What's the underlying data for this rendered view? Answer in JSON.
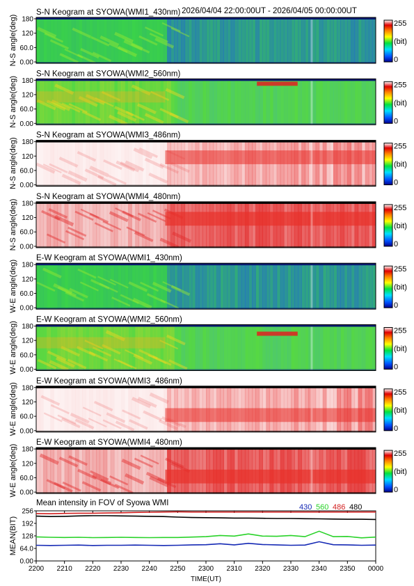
{
  "time_range": "2026/04/04 22:00:00UT - 2026/04/05 00:00:00UT",
  "colors": {
    "blue": "#1428b4",
    "green": "#28d228",
    "red": "#d21e1e",
    "black": "#000000"
  },
  "colorbar": {
    "max_label": "255",
    "unit_label": "(bit)",
    "min_label": "0"
  },
  "chart_data": [
    {
      "type": "heatmap",
      "title": "S-N Keogram at SYOWA(WMI1_430nm)",
      "ylabel": "N-S angle(deg)",
      "yticks": [
        "180",
        "120",
        "60.0",
        "0.00"
      ],
      "ylim": [
        0,
        180
      ],
      "style": "green"
    },
    {
      "type": "heatmap",
      "title": "S-N Keogram at SYOWA(WMI2_560nm)",
      "ylabel": "N-S angle(deg)",
      "yticks": [
        "180",
        "120",
        "60.0",
        "0.00"
      ],
      "ylim": [
        0,
        180
      ],
      "style": "yellow"
    },
    {
      "type": "heatmap",
      "title": "S-N Keogram at SYOWA(WMI3_486nm)",
      "ylabel": "N-S angle(deg)",
      "yticks": [
        "180",
        "120",
        "60.0",
        "0.00"
      ],
      "ylim": [
        0,
        180
      ],
      "style": "white"
    },
    {
      "type": "heatmap",
      "title": "S-N Keogram at SYOWA(WMI4_480nm)",
      "ylabel": "N-S angle(deg)",
      "yticks": [
        "180",
        "120",
        "60.0",
        "0.00"
      ],
      "ylim": [
        0,
        180
      ],
      "style": "whitered"
    },
    {
      "type": "heatmap",
      "title": "E-W Keogram at SYOWA(WMI1_430nm)",
      "ylabel": "W-E angle(deg)",
      "yticks": [
        "180",
        "120",
        "60.0",
        "0.00"
      ],
      "ylim": [
        0,
        180
      ],
      "style": "green"
    },
    {
      "type": "heatmap",
      "title": "E-W Keogram at SYOWA(WMI2_560nm)",
      "ylabel": "W-E angle(deg)",
      "yticks": [
        "180",
        "120",
        "60.0",
        "0.00"
      ],
      "ylim": [
        0,
        180
      ],
      "style": "yellow"
    },
    {
      "type": "heatmap",
      "title": "E-W Keogram at SYOWA(WMI3_486nm)",
      "ylabel": "W-E angle(deg)",
      "yticks": [
        "180",
        "120",
        "60.0",
        "0.00"
      ],
      "ylim": [
        0,
        180
      ],
      "style": "white"
    },
    {
      "type": "heatmap",
      "title": "E-W Keogram at SYOWA(WMI4_480nm)",
      "ylabel": "W-E angle(deg)",
      "yticks": [
        "180",
        "120",
        "60.0",
        "0.00"
      ],
      "ylim": [
        0,
        180
      ],
      "style": "whitered"
    },
    {
      "type": "line",
      "title": "Mean intensity in FOV of Syowa WMI",
      "ylabel": "MEAN(BIT)",
      "xlabel": "TIME(UT)",
      "ylim": [
        0,
        256
      ],
      "yticks": [
        "256",
        "192",
        "128",
        "64.0",
        "0.00"
      ],
      "xticks": [
        "2200",
        "2210",
        "2220",
        "2230",
        "2240",
        "2250",
        "2300",
        "2310",
        "2320",
        "2330",
        "2340",
        "2350",
        "0000"
      ],
      "x": [
        0,
        5,
        10,
        15,
        20,
        25,
        30,
        35,
        40,
        45,
        50,
        55,
        60,
        65,
        70,
        75,
        80,
        85,
        90,
        95,
        100,
        105,
        110,
        115,
        120
      ],
      "series": [
        {
          "name": "430",
          "color": "#1428b4",
          "values": [
            80,
            79,
            80,
            81,
            79,
            80,
            80,
            81,
            80,
            79,
            80,
            82,
            83,
            88,
            82,
            90,
            84,
            82,
            80,
            81,
            98,
            83,
            82,
            80,
            81
          ]
        },
        {
          "name": "560",
          "color": "#28d228",
          "values": [
            123,
            121,
            120,
            121,
            119,
            120,
            121,
            120,
            119,
            120,
            120,
            122,
            124,
            130,
            127,
            138,
            127,
            126,
            130,
            124,
            152,
            124,
            125,
            118,
            122
          ]
        },
        {
          "name": "486",
          "color": "#d21e1e",
          "values": [
            242,
            241,
            243,
            244,
            244,
            245,
            246,
            248,
            249,
            250,
            251,
            250,
            250,
            250,
            250,
            250,
            250,
            250,
            250,
            250,
            250,
            250,
            250,
            250,
            250
          ]
        },
        {
          "name": "480",
          "color": "#000000",
          "values": [
            229,
            227,
            228,
            230,
            231,
            231,
            230,
            229,
            228,
            227,
            224,
            222,
            221,
            220,
            219,
            219,
            218,
            217,
            217,
            216,
            215,
            214,
            213,
            213,
            212
          ]
        }
      ]
    }
  ]
}
